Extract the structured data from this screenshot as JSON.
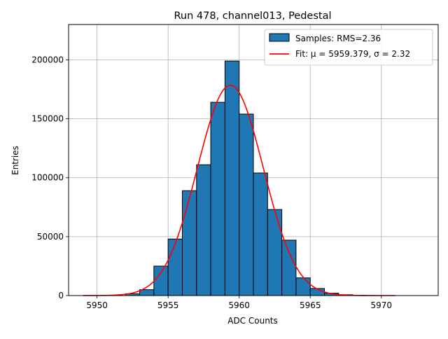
{
  "chart_data": {
    "type": "bar",
    "title": "Run 478, channel013, Pedestal",
    "xlabel": "ADC Counts",
    "ylabel": "Entries",
    "xlim": [
      948.0,
      974.0
    ],
    "xlim_note": "",
    "x_offset": 5000,
    "ylim": [
      0,
      230000
    ],
    "x_ticks": [
      5950,
      5955,
      5960,
      5965,
      5970
    ],
    "y_ticks": [
      0,
      50000,
      100000,
      150000,
      200000
    ],
    "grid": true,
    "legend_position": "top-right",
    "bar_color": "#1f77b4",
    "bar_edge_color": "#000000",
    "fit_color": "#ff0000",
    "bins": {
      "left_edges": [
        5952,
        5953,
        5954,
        5955,
        5956,
        5957,
        5958,
        5959,
        5960,
        5961,
        5962,
        5963,
        5964,
        5965,
        5966,
        5967,
        5968
      ],
      "width": 1,
      "values": [
        1500,
        5000,
        25000,
        48000,
        89000,
        111000,
        164000,
        199000,
        154000,
        104000,
        73000,
        47000,
        15000,
        6000,
        2000,
        700,
        200
      ]
    },
    "fit": {
      "mu": 5959.379,
      "sigma": 2.32,
      "amplitude": 178500,
      "x_range": [
        5949,
        5971
      ]
    },
    "series": [
      {
        "name": "Samples: RMS=2.36",
        "kind": "histogram"
      },
      {
        "name": "Fit: μ = 5959.379, σ = 2.32",
        "kind": "line"
      }
    ]
  }
}
